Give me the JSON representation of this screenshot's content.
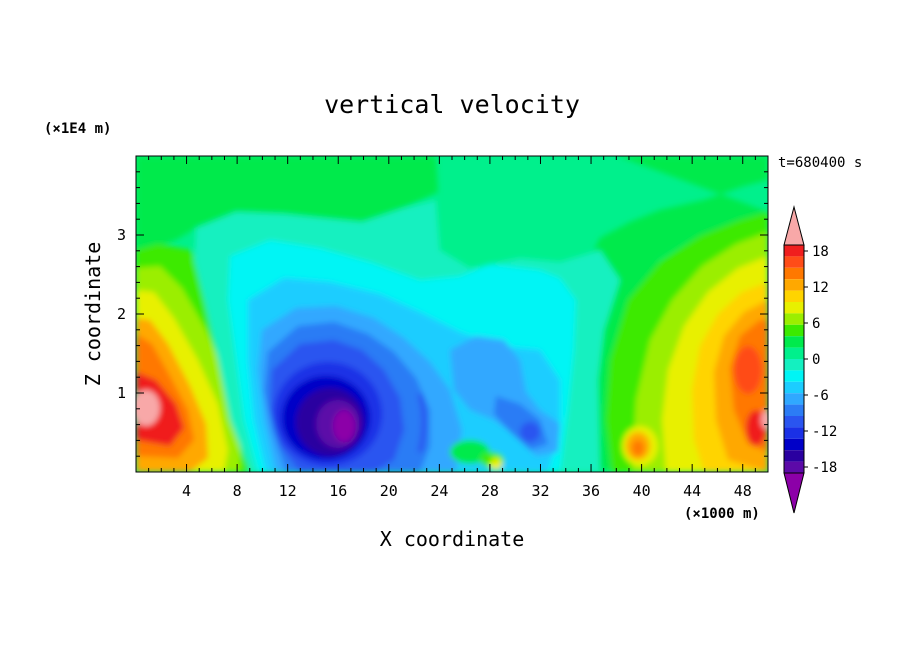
{
  "chart_data": {
    "type": "heatmap",
    "title": "vertical velocity",
    "time_label": "t=680400 s",
    "xlabel": "X coordinate",
    "ylabel": "Z coordinate",
    "x_unit": "(×1000 m)",
    "y_unit": "(×1E4 m)",
    "xlim": [
      0,
      50
    ],
    "ylim": [
      0,
      4
    ],
    "x_ticks": [
      4,
      8,
      12,
      16,
      20,
      24,
      28,
      32,
      36,
      40,
      44,
      48
    ],
    "y_ticks": [
      1,
      2,
      3
    ],
    "colorbar": {
      "min": -21,
      "max": 21,
      "step": 2,
      "tick_labels": [
        18,
        12,
        6,
        0,
        -6,
        -12,
        -18
      ],
      "colors": [
        "#8c00a8",
        "#5c0aa8",
        "#2a00a0",
        "#0000c8",
        "#1a30e6",
        "#2a55f0",
        "#2c7cf5",
        "#30a8ff",
        "#1ccdff",
        "#00f5f5",
        "#14f0c0",
        "#00f08c",
        "#00ea4c",
        "#3cea00",
        "#9bee00",
        "#e8f000",
        "#ffd400",
        "#ffa800",
        "#ff7800",
        "#ff4c18",
        "#f01e1e",
        "#f8a8a8"
      ]
    },
    "features": [
      {
        "name": "strong downdraft core",
        "x_center": 15.5,
        "z_center": 0.6,
        "peak": -20
      },
      {
        "name": "updraft left edge",
        "x_center": 1,
        "z_center": 0.8,
        "peak": 20
      },
      {
        "name": "updraft right edge",
        "x_center": 48,
        "z_center": 1.2,
        "peak": 16
      },
      {
        "name": "updraft cell",
        "x_center": 40,
        "z_center": 0.3,
        "peak": 14
      }
    ]
  }
}
